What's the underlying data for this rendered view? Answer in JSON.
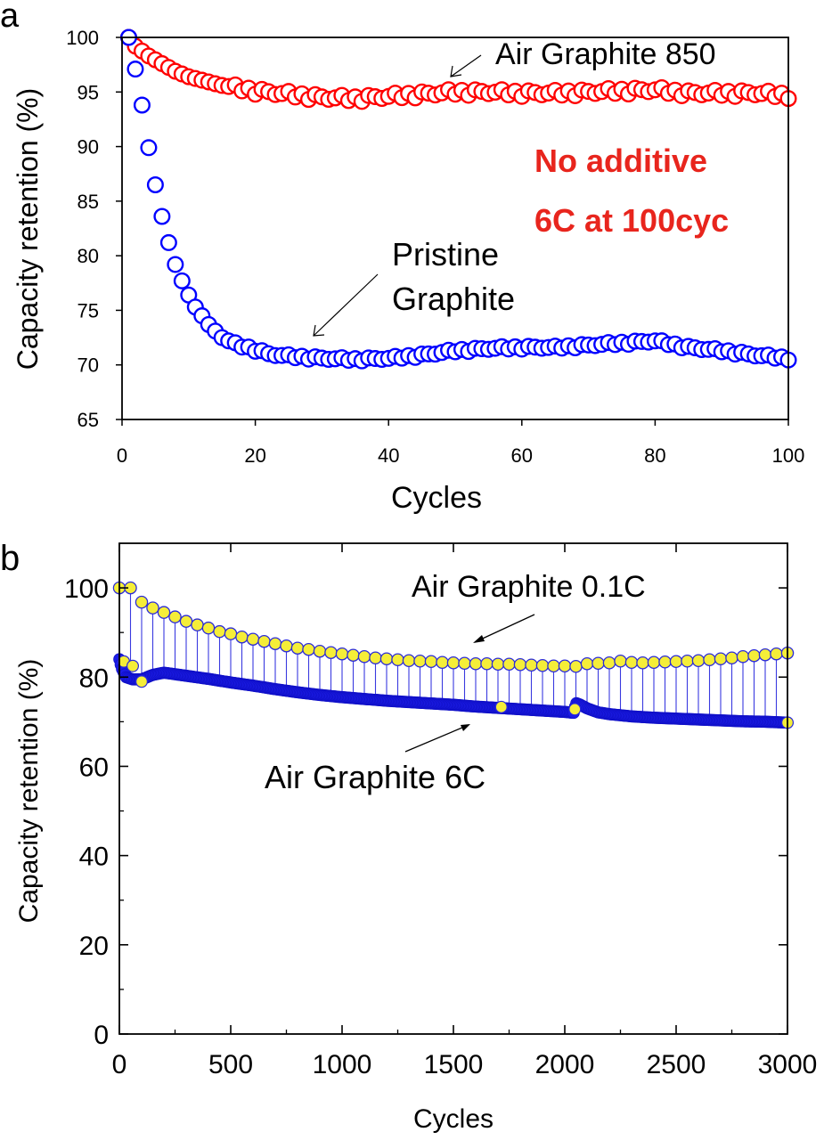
{
  "chart_data": [
    {
      "panel_label": "a",
      "type": "scatter",
      "title": "",
      "xlabel": "Cycles",
      "ylabel": "Capacity retention (%)",
      "xlim": [
        0,
        100
      ],
      "ylim": [
        65,
        100
      ],
      "xticks": [
        0,
        20,
        40,
        60,
        80,
        100
      ],
      "yticks": [
        65,
        70,
        75,
        80,
        85,
        90,
        95,
        100
      ],
      "x_tick_labels": [
        "0",
        "20",
        "40",
        "60",
        "80",
        "100"
      ],
      "y_tick_labels": [
        "65",
        "70",
        "75",
        "80",
        "85",
        "90",
        "95",
        "100"
      ],
      "colors": {
        "axis": "#000000",
        "air": "#ff0000",
        "pristine": "#0000ff",
        "annotation_red": "#e8251d"
      },
      "series": [
        {
          "name": "Air Graphite 850",
          "color": "#ff0000",
          "keypoints_x": [
            1,
            2,
            4,
            6,
            8,
            10,
            15,
            20,
            25,
            30,
            35,
            40,
            45,
            50,
            55,
            60,
            65,
            70,
            75,
            80,
            85,
            90,
            95,
            100
          ],
          "keypoints_y": [
            100,
            99.2,
            98.3,
            97.6,
            96.9,
            96.4,
            95.6,
            95.1,
            94.8,
            94.5,
            94.4,
            94.6,
            94.8,
            95,
            95,
            94.9,
            94.9,
            95,
            95.1,
            95.2,
            94.9,
            94.9,
            94.9,
            94.7
          ]
        },
        {
          "name": "Pristine Graphite",
          "color": "#0000ff",
          "keypoints_x": [
            1,
            2,
            3,
            4,
            5,
            6,
            7,
            8,
            9,
            10,
            11,
            12,
            13,
            14,
            15,
            17,
            20,
            22,
            25,
            30,
            35,
            40,
            45,
            50,
            55,
            60,
            65,
            70,
            75,
            80,
            85,
            90,
            95,
            100
          ],
          "keypoints_y": [
            100,
            97.1,
            93.8,
            89.9,
            86.5,
            83.6,
            81.2,
            79.2,
            77.7,
            76.4,
            75.3,
            74.5,
            73.7,
            73.1,
            72.5,
            71.9,
            71.4,
            71,
            70.8,
            70.6,
            70.5,
            70.6,
            70.9,
            71.3,
            71.5,
            71.6,
            71.6,
            71.8,
            72,
            72.2,
            71.6,
            71.3,
            70.9,
            70.6
          ]
        }
      ],
      "annotations": [
        {
          "key": "air_label",
          "text": "Air Graphite 850"
        },
        {
          "key": "no_additive",
          "text": "No additive"
        },
        {
          "key": "rate",
          "text": "6C at 100cyc"
        },
        {
          "key": "pristine_1",
          "text": "Pristine"
        },
        {
          "key": "pristine_2",
          "text": "Graphite"
        }
      ]
    },
    {
      "panel_label": "b",
      "type": "scatter",
      "title": "",
      "xlabel": "Cycles",
      "ylabel": "Capacity retention (%)",
      "xlim": [
        0,
        3000
      ],
      "ylim": [
        0,
        110
      ],
      "xticks": [
        0,
        500,
        1000,
        1500,
        2000,
        2500,
        3000
      ],
      "yticks": [
        0,
        20,
        40,
        60,
        80,
        100
      ],
      "x_tick_labels": [
        "0",
        "500",
        "1000",
        "1500",
        "2000",
        "2500",
        "3000"
      ],
      "y_tick_labels": [
        "0",
        "20",
        "40",
        "60",
        "80",
        "100"
      ],
      "colors": {
        "axis": "#000000",
        "marker_fill_01C": "#f5ee38",
        "marker_edge_01C": "#2b2bd8",
        "dense_6C": "#1c1ce6",
        "droplines": "#3a3adf"
      },
      "series": [
        {
          "name": "Air Graphite 0.1C",
          "color": "#f5ee38",
          "x": [
            0,
            50,
            100,
            150,
            200,
            250,
            300,
            350,
            400,
            450,
            500,
            550,
            600,
            650,
            700,
            750,
            800,
            850,
            900,
            950,
            1000,
            1050,
            1100,
            1150,
            1200,
            1250,
            1300,
            1350,
            1400,
            1450,
            1500,
            1550,
            1600,
            1650,
            1700,
            1750,
            1800,
            1850,
            1900,
            1950,
            2000,
            2050,
            2100,
            2150,
            2200,
            2250,
            2300,
            2350,
            2400,
            2450,
            2500,
            2550,
            2600,
            2650,
            2700,
            2750,
            2800,
            2850,
            2900,
            2950,
            3000
          ],
          "y": [
            100,
            100,
            96.8,
            95.5,
            94.5,
            93.5,
            92.5,
            91.7,
            91,
            90.2,
            89.7,
            89,
            88.5,
            88,
            87.5,
            87,
            86.5,
            86.2,
            85.8,
            85.5,
            85.2,
            84.9,
            84.6,
            84.3,
            84.1,
            83.9,
            83.7,
            83.6,
            83.5,
            83.3,
            83.2,
            83.1,
            83,
            83,
            82.9,
            82.9,
            82.8,
            82.7,
            82.6,
            82.5,
            82.5,
            82.4,
            83,
            83.1,
            83.2,
            83.6,
            83.3,
            83.2,
            83.3,
            83.4,
            83.5,
            83.6,
            83.7,
            83.9,
            84.1,
            84.3,
            84.6,
            84.8,
            85,
            85.2,
            85.4
          ]
        },
        {
          "name": "Air Graphite 6C",
          "color": "#1c1ce6",
          "keypoints_x": [
            0,
            10,
            30,
            60,
            100,
            150,
            200,
            300,
            400,
            500,
            600,
            700,
            800,
            900,
            1000,
            1100,
            1200,
            1300,
            1400,
            1500,
            1600,
            1700,
            1800,
            1900,
            2000,
            2040,
            2050,
            2070,
            2100,
            2150,
            2200,
            2300,
            2400,
            2500,
            2600,
            2700,
            2800,
            2900,
            3000
          ],
          "keypoints_y": [
            84,
            82,
            80,
            79.5,
            79.5,
            80.5,
            81,
            80.3,
            79.6,
            78.8,
            78.1,
            77.3,
            76.6,
            76,
            75.5,
            75.1,
            74.7,
            74.4,
            74.1,
            73.8,
            73.4,
            73.1,
            72.8,
            72.5,
            72.2,
            72,
            74.2,
            73.8,
            73,
            72.1,
            71.7,
            71.2,
            70.9,
            70.7,
            70.5,
            70.3,
            70.1,
            70,
            69.8
          ]
        }
      ],
      "annotations": [
        {
          "key": "label_01C",
          "text": "Air Graphite 0.1C"
        },
        {
          "key": "label_6C",
          "text": "Air Graphite 6C"
        }
      ]
    }
  ]
}
